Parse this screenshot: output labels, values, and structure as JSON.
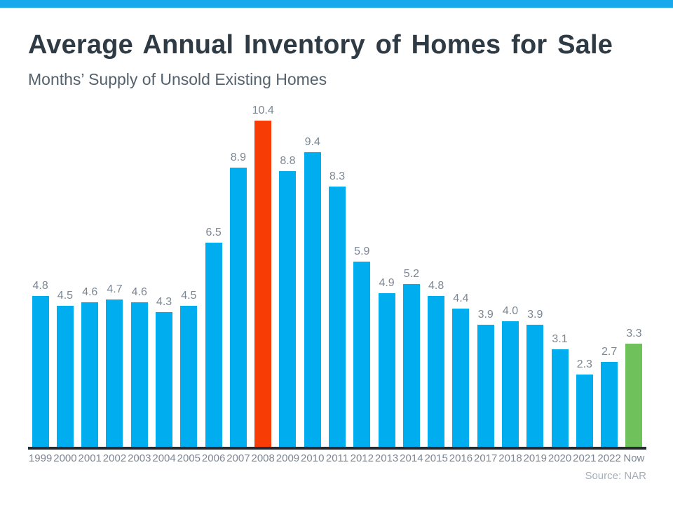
{
  "page": {
    "top_bar_color": "#18A9EC",
    "background_color": "#FFFFFF"
  },
  "header": {
    "title": "Average Annual Inventory of Homes for Sale",
    "subtitle": "Months’ Supply of Unsold Existing Homes"
  },
  "chart_data": {
    "type": "bar",
    "title": "Average Annual Inventory of Homes for Sale",
    "subtitle": "Months’ Supply of Unsold Existing Homes",
    "categories": [
      "1999",
      "2000",
      "2001",
      "2002",
      "2003",
      "2004",
      "2005",
      "2006",
      "2007",
      "2008",
      "2009",
      "2010",
      "2011",
      "2012",
      "2013",
      "2014",
      "2015",
      "2016",
      "2017",
      "2018",
      "2019",
      "2020",
      "2021",
      "2022",
      "Now"
    ],
    "values": [
      4.8,
      4.5,
      4.6,
      4.7,
      4.6,
      4.3,
      4.5,
      6.5,
      8.9,
      10.4,
      8.8,
      9.4,
      8.3,
      5.9,
      4.9,
      5.2,
      4.8,
      4.4,
      3.9,
      4.0,
      3.9,
      3.1,
      2.3,
      2.7,
      3.3
    ],
    "value_labels": [
      "4.8",
      "4.5",
      "4.6",
      "4.7",
      "4.6",
      "4.3",
      "4.5",
      "6.5",
      "8.9",
      "10.4",
      "8.8",
      "9.4",
      "8.3",
      "5.9",
      "4.9",
      "5.2",
      "4.8",
      "4.4",
      "3.9",
      "4.0",
      "3.9",
      "3.1",
      "2.3",
      "2.7",
      "3.3"
    ],
    "default_bar_color": "#00AEEF",
    "highlight_colors": {
      "2008": "#F83C05",
      "Now": "#6FC15B"
    },
    "label_color": "#7C8793",
    "axis_line_color": "#242A30",
    "ylim": [
      0,
      10.4
    ],
    "grid": false,
    "legend": false,
    "xlabel": "",
    "ylabel": "",
    "source": "Source: NAR"
  }
}
